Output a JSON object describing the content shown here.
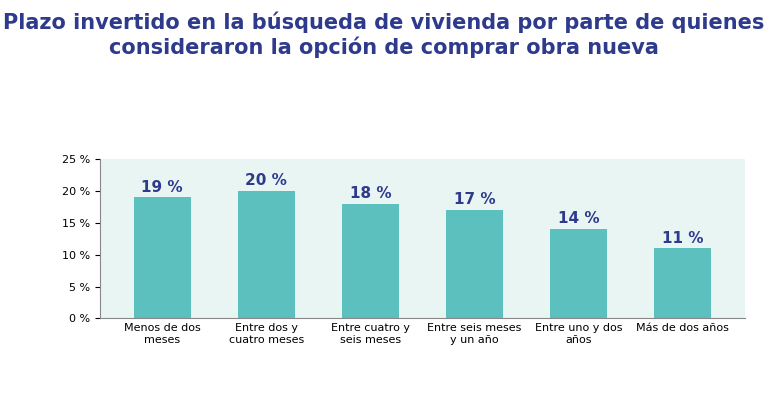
{
  "chart_data": {
    "type": "bar",
    "title": "Plazo invertido en la búsqueda de vivienda por parte de quienes consideraron la opción de comprar obra nueva",
    "categories": [
      "Menos de dos meses",
      "Entre dos y cuatro meses",
      "Entre cuatro y seis meses",
      "Entre seis meses y un año",
      "Entre uno y dos años",
      "Más de dos años"
    ],
    "values": [
      19,
      20,
      18,
      17,
      14,
      11
    ],
    "value_labels": [
      "19 %",
      "20 %",
      "18 %",
      "17 %",
      "14 %",
      "11 %"
    ],
    "data_labels": true,
    "color": "#5bc0be",
    "ylim": [
      0,
      25
    ],
    "yticks": [
      {
        "value": 0,
        "label": "0 %"
      },
      {
        "value": 5,
        "label": "5 %"
      },
      {
        "value": 10,
        "label": "10 %"
      },
      {
        "value": 15,
        "label": "15 %"
      },
      {
        "value": 20,
        "label": "20 %"
      },
      {
        "value": 25,
        "label": "25 %"
      }
    ],
    "grid": false
  }
}
